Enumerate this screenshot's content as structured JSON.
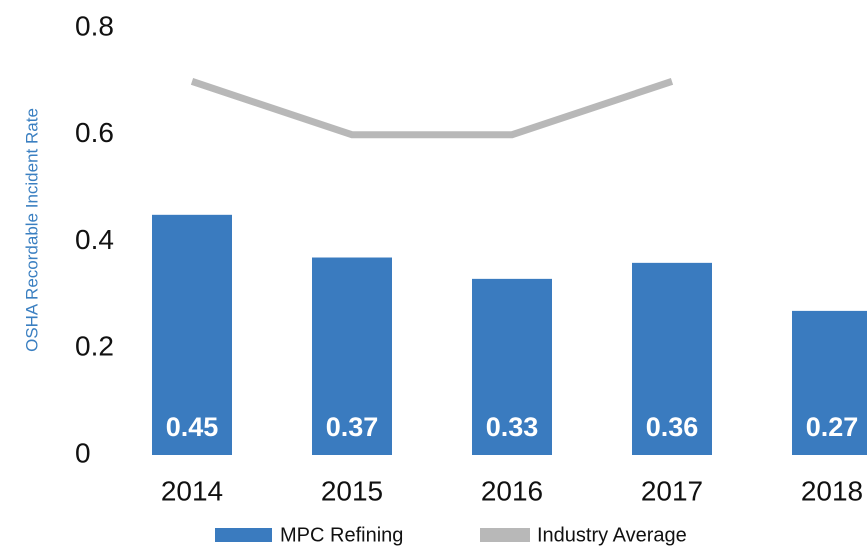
{
  "chart_data": {
    "type": "bar",
    "y_label": "OSHA Recordable Incident Rate",
    "categories": [
      "2014",
      "2015",
      "2016",
      "2017",
      "2018"
    ],
    "series": [
      {
        "name": "MPC Refining",
        "type": "bar",
        "color": "#3a7bbf",
        "values": [
          0.45,
          0.37,
          0.33,
          0.36,
          0.27
        ]
      },
      {
        "name": "Industry Average",
        "type": "line",
        "color": "#b8b8b8",
        "values": [
          0.7,
          0.6,
          0.6,
          0.7,
          null
        ]
      }
    ],
    "ylim": [
      0,
      0.8
    ],
    "yticks": [
      0,
      0.2,
      0.4,
      0.6,
      0.8
    ],
    "grid": false,
    "legend": "bottom"
  }
}
